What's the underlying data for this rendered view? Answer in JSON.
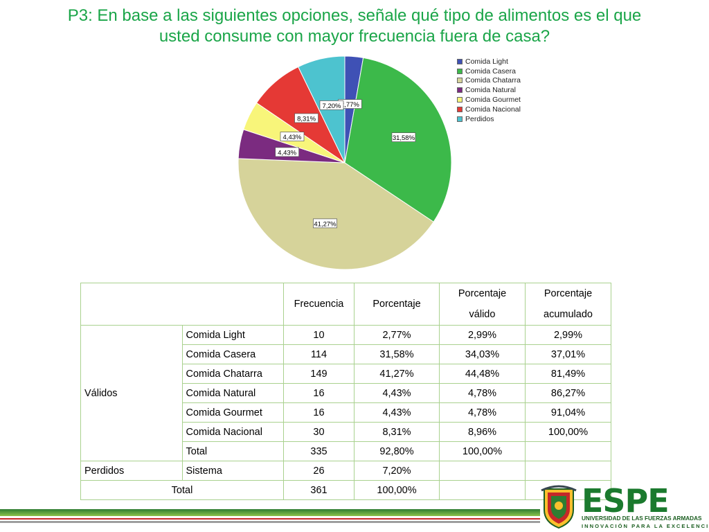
{
  "title_line1": "P3: En base a las siguientes opciones, señale qué tipo de alimentos es el que",
  "title_line2": "usted consume con mayor frecuencia fuera de casa?",
  "chart_data": {
    "type": "pie",
    "title": "",
    "slices": [
      {
        "label": "Comida Light",
        "value": 2.77,
        "display": "2,77%",
        "color": "#3f51b5"
      },
      {
        "label": "Comida Casera",
        "value": 31.58,
        "display": "31,58%",
        "color": "#3cb94a"
      },
      {
        "label": "Comida Chatarra",
        "value": 41.27,
        "display": "41,27%",
        "color": "#d6d39a"
      },
      {
        "label": "Comida Natural",
        "value": 4.43,
        "display": "4,43%",
        "color": "#7b2b80"
      },
      {
        "label": "Comida Gourmet",
        "value": 4.43,
        "display": "4,43%",
        "color": "#f8f57a"
      },
      {
        "label": "Comida Nacional",
        "value": 8.31,
        "display": "8,31%",
        "color": "#e53935"
      },
      {
        "label": "Perdidos",
        "value": 7.2,
        "display": "7,20%",
        "color": "#4dc3cf"
      }
    ],
    "legend_position": "top-right"
  },
  "table": {
    "headers": {
      "frecuencia": "Frecuencia",
      "porcentaje": "Porcentaje",
      "porcentaje_valido_1": "Porcentaje",
      "porcentaje_valido_2": "válido",
      "porcentaje_acumulado_1": "Porcentaje",
      "porcentaje_acumulado_2": "acumulado"
    },
    "group_validos": "Válidos",
    "rows": [
      {
        "label": "Comida Light",
        "frecuencia": "10",
        "porcentaje": "2,77%",
        "valido": "2,99%",
        "acumulado": "2,99%"
      },
      {
        "label": "Comida Casera",
        "frecuencia": "114",
        "porcentaje": "31,58%",
        "valido": "34,03%",
        "acumulado": "37,01%"
      },
      {
        "label": "Comida Chatarra",
        "frecuencia": "149",
        "porcentaje": "41,27%",
        "valido": "44,48%",
        "acumulado": "81,49%"
      },
      {
        "label": "Comida Natural",
        "frecuencia": "16",
        "porcentaje": "4,43%",
        "valido": "4,78%",
        "acumulado": "86,27%"
      },
      {
        "label": "Comida Gourmet",
        "frecuencia": "16",
        "porcentaje": "4,43%",
        "valido": "4,78%",
        "acumulado": "91,04%"
      },
      {
        "label": "Comida Nacional",
        "frecuencia": "30",
        "porcentaje": "8,31%",
        "valido": "8,96%",
        "acumulado": "100,00%"
      },
      {
        "label": "Total",
        "frecuencia": "335",
        "porcentaje": "92,80%",
        "valido": "100,00%",
        "acumulado": ""
      }
    ],
    "perdidos": {
      "group": "Perdidos",
      "label": "Sistema",
      "frecuencia": "26",
      "porcentaje": "7,20%"
    },
    "total": {
      "label": "Total",
      "frecuencia": "361",
      "porcentaje": "100,00%"
    }
  },
  "logo": {
    "text": "ESPE",
    "subtitle": "UNIVERSIDAD DE LAS FUERZAS ARMADAS",
    "motto": "INNOVACIÓN PARA LA EXCELENCIA"
  }
}
